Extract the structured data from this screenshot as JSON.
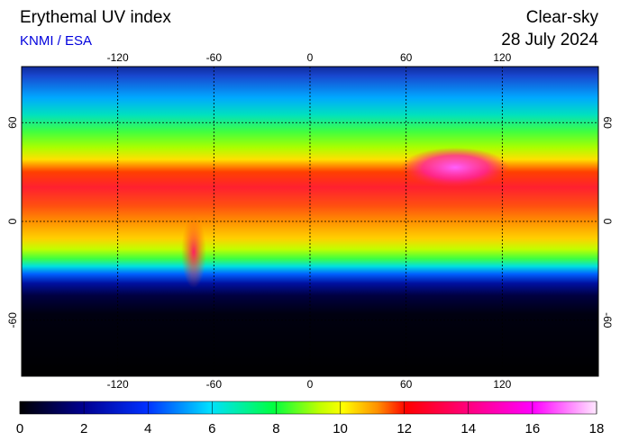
{
  "header": {
    "title": "Erythemal UV index",
    "source": "KNMI / ESA",
    "condition": "Clear-sky",
    "date": "28 July 2024"
  },
  "map": {
    "lon_range": [
      -180,
      180
    ],
    "lat_range": [
      -94,
      94
    ],
    "lon_ticks": [
      -120,
      -60,
      0,
      60,
      120
    ],
    "lat_ticks": [
      -60,
      0,
      60
    ]
  },
  "colorbar": {
    "range": [
      0,
      18
    ],
    "ticks": [
      0,
      2,
      4,
      6,
      8,
      10,
      12,
      14,
      16,
      18
    ]
  }
}
